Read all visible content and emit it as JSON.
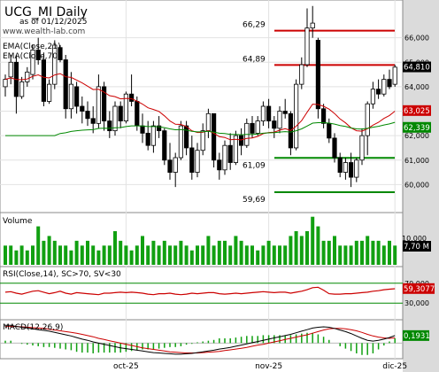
{
  "header": {
    "title": "UCG_MI Daily",
    "date_line": "as of 01/12/2025",
    "site": "www.wealth-lab.com"
  },
  "chart_data": [
    {
      "type": "candlestick",
      "panel": "price",
      "ylim": [
        59.0,
        67.4
      ],
      "y_ticks": [
        "66,000",
        "65,000",
        "64,000",
        "63,000",
        "62,000",
        "61,000",
        "60,000"
      ],
      "x_ticks": [
        "oct-25",
        "nov-25",
        "dic-25"
      ],
      "legend": [
        "EMA(Close,21)",
        "EMA(Close,70)"
      ],
      "ema21_label": "63,025",
      "ema70_label": "62,339",
      "last_label": "64,810",
      "levels": [
        {
          "label": "66,29",
          "value": 66.29,
          "color": "#cc0000"
        },
        {
          "label": "64,89",
          "value": 64.89,
          "color": "#cc0000"
        },
        {
          "label": "61,09",
          "value": 61.09,
          "color": "#008800"
        },
        {
          "label": "59,69",
          "value": 59.69,
          "color": "#008800"
        }
      ],
      "candles": [
        [
          64.0,
          64.5,
          63.6,
          64.3
        ],
        [
          64.4,
          65.3,
          64.1,
          65.0
        ],
        [
          65.0,
          65.3,
          62.9,
          63.6
        ],
        [
          63.6,
          64.4,
          63.5,
          64.2
        ],
        [
          64.2,
          64.8,
          64.0,
          64.6
        ],
        [
          64.5,
          65.7,
          64.3,
          65.5
        ],
        [
          65.5,
          66.0,
          64.9,
          65.1
        ],
        [
          65.1,
          65.4,
          63.2,
          63.4
        ],
        [
          63.4,
          64.3,
          63.3,
          64.1
        ],
        [
          64.1,
          65.9,
          63.9,
          65.7
        ],
        [
          65.6,
          65.7,
          65.0,
          65.1
        ],
        [
          65.1,
          65.3,
          62.7,
          63.1
        ],
        [
          63.1,
          64.6,
          62.7,
          64.1
        ],
        [
          64.0,
          64.2,
          62.9,
          63.2
        ],
        [
          63.2,
          63.6,
          62.5,
          63.0
        ],
        [
          63.0,
          63.4,
          62.4,
          62.7
        ],
        [
          62.7,
          63.2,
          62.1,
          62.5
        ],
        [
          62.5,
          64.5,
          62.3,
          64.0
        ],
        [
          64.0,
          64.2,
          62.2,
          62.6
        ],
        [
          62.6,
          63.0,
          61.9,
          62.2
        ],
        [
          62.2,
          63.4,
          62.0,
          63.2
        ],
        [
          63.2,
          63.4,
          62.3,
          62.6
        ],
        [
          62.6,
          63.8,
          62.5,
          63.7
        ],
        [
          63.7,
          64.5,
          63.2,
          63.4
        ],
        [
          63.4,
          63.6,
          62.2,
          62.4
        ],
        [
          62.4,
          62.9,
          61.7,
          62.1
        ],
        [
          62.1,
          62.6,
          61.4,
          61.6
        ],
        [
          61.6,
          62.6,
          61.3,
          62.4
        ],
        [
          62.4,
          62.8,
          61.9,
          62.2
        ],
        [
          62.2,
          62.3,
          60.8,
          61.0
        ],
        [
          61.0,
          61.7,
          60.2,
          60.5
        ],
        [
          60.5,
          61.3,
          59.9,
          61.1
        ],
        [
          61.1,
          62.6,
          61.0,
          62.4
        ],
        [
          62.4,
          62.6,
          61.2,
          61.5
        ],
        [
          61.5,
          62.0,
          60.2,
          60.5
        ],
        [
          60.5,
          61.7,
          60.3,
          61.4
        ],
        [
          61.4,
          62.5,
          61.2,
          62.2
        ],
        [
          62.2,
          63.1,
          61.9,
          62.9
        ],
        [
          62.9,
          62.9,
          60.7,
          61.0
        ],
        [
          61.0,
          61.3,
          60.2,
          60.6
        ],
        [
          60.6,
          61.8,
          60.4,
          61.6
        ],
        [
          61.6,
          62.1,
          60.6,
          60.9
        ],
        [
          60.9,
          62.2,
          60.8,
          62.0
        ],
        [
          62.0,
          62.3,
          61.2,
          61.6
        ],
        [
          61.6,
          62.7,
          61.5,
          62.5
        ],
        [
          62.5,
          62.8,
          61.9,
          62.1
        ],
        [
          62.1,
          62.8,
          62.0,
          62.6
        ],
        [
          62.6,
          63.4,
          62.4,
          63.2
        ],
        [
          63.2,
          63.5,
          62.3,
          62.6
        ],
        [
          62.6,
          62.8,
          61.9,
          62.3
        ],
        [
          62.3,
          63.2,
          62.1,
          63.0
        ],
        [
          63.0,
          63.5,
          62.7,
          62.9
        ],
        [
          62.9,
          63.0,
          61.2,
          61.5
        ],
        [
          61.5,
          64.3,
          61.4,
          64.1
        ],
        [
          64.1,
          65.2,
          63.9,
          64.9
        ],
        [
          64.9,
          67.2,
          64.8,
          66.4
        ],
        [
          66.4,
          67.3,
          66.0,
          66.6
        ],
        [
          65.9,
          66.0,
          62.7,
          63.1
        ],
        [
          63.1,
          63.3,
          62.3,
          62.5
        ],
        [
          62.5,
          62.7,
          61.7,
          61.9
        ],
        [
          61.9,
          62.1,
          60.9,
          61.1
        ],
        [
          61.1,
          61.3,
          60.3,
          60.5
        ],
        [
          60.5,
          61.1,
          60.2,
          60.9
        ],
        [
          60.9,
          61.3,
          59.9,
          60.3
        ],
        [
          60.3,
          61.1,
          60.1,
          61.0
        ],
        [
          61.0,
          62.3,
          60.8,
          62.0
        ],
        [
          62.0,
          63.4,
          61.2,
          63.3
        ],
        [
          63.3,
          64.2,
          63.1,
          63.9
        ],
        [
          63.9,
          64.3,
          63.5,
          63.7
        ],
        [
          63.7,
          64.5,
          63.6,
          64.3
        ],
        [
          64.3,
          64.7,
          63.9,
          64.0
        ],
        [
          64.1,
          64.9,
          64.0,
          64.8
        ]
      ]
    },
    {
      "type": "bar",
      "panel": "volume",
      "title": "Volume",
      "y_ticks": [
        "10,000"
      ],
      "last_label": "7,70 M",
      "values": [
        4,
        4,
        3,
        4,
        3,
        4,
        8,
        5,
        6,
        5,
        4,
        4,
        3,
        5,
        4,
        5,
        4,
        3,
        4,
        4,
        7,
        5,
        4,
        3,
        4,
        6,
        4,
        5,
        4,
        5,
        4,
        4,
        5,
        4,
        3,
        4,
        4,
        6,
        4,
        5,
        5,
        4,
        6,
        5,
        4,
        4,
        3,
        4,
        5,
        4,
        4,
        4,
        6,
        7,
        6,
        7,
        10,
        8,
        5,
        5,
        6,
        4,
        4,
        4,
        5,
        5,
        6,
        5,
        5,
        4,
        5,
        4
      ]
    },
    {
      "type": "line",
      "panel": "rsi",
      "title": "RSI(Close,14), SC>70, SV<30",
      "ylim": [
        0,
        100
      ],
      "y_ticks": [
        "70,000",
        "30,000"
      ],
      "levels": [
        70,
        30
      ],
      "last_label": "59,3077",
      "values": [
        52,
        53,
        50,
        48,
        51,
        54,
        55,
        52,
        49,
        51,
        54,
        50,
        48,
        51,
        50,
        49,
        48,
        47,
        50,
        50,
        51,
        52,
        51,
        52,
        51,
        50,
        48,
        47,
        49,
        49,
        50,
        48,
        47,
        48,
        50,
        49,
        50,
        51,
        51,
        49,
        48,
        49,
        50,
        49,
        50,
        51,
        52,
        53,
        52,
        51,
        52,
        52,
        50,
        52,
        54,
        57,
        61,
        62,
        56,
        49,
        48,
        48,
        49,
        49,
        50,
        51,
        52,
        54,
        55,
        57,
        58,
        59
      ]
    },
    {
      "type": "line",
      "panel": "macd",
      "title": "MACD(12,26,9)",
      "last_label": "0,1931",
      "macd": [
        0.45,
        0.45,
        0.42,
        0.4,
        0.38,
        0.36,
        0.34,
        0.32,
        0.3,
        0.27,
        0.24,
        0.21,
        0.18,
        0.14,
        0.1,
        0.07,
        0.03,
        0.0,
        -0.03,
        -0.06,
        -0.09,
        -0.12,
        -0.14,
        -0.16,
        -0.18,
        -0.2,
        -0.22,
        -0.24,
        -0.25,
        -0.26,
        -0.27,
        -0.28,
        -0.28,
        -0.27,
        -0.26,
        -0.24,
        -0.22,
        -0.2,
        -0.18,
        -0.15,
        -0.13,
        -0.11,
        -0.08,
        -0.05,
        -0.02,
        0.01,
        0.04,
        0.07,
        0.1,
        0.13,
        0.16,
        0.19,
        0.22,
        0.26,
        0.3,
        0.34,
        0.38,
        0.4,
        0.41,
        0.4,
        0.37,
        0.33,
        0.29,
        0.24,
        0.18,
        0.12,
        0.07,
        0.05,
        0.07,
        0.1,
        0.14,
        0.19
      ],
      "signal": [
        0.42,
        0.42,
        0.42,
        0.41,
        0.4,
        0.39,
        0.38,
        0.37,
        0.35,
        0.33,
        0.31,
        0.29,
        0.27,
        0.25,
        0.22,
        0.19,
        0.16,
        0.12,
        0.09,
        0.06,
        0.03,
        0.0,
        -0.03,
        -0.06,
        -0.09,
        -0.12,
        -0.14,
        -0.16,
        -0.18,
        -0.2,
        -0.22,
        -0.23,
        -0.24,
        -0.25,
        -0.25,
        -0.25,
        -0.24,
        -0.23,
        -0.22,
        -0.21,
        -0.19,
        -0.17,
        -0.15,
        -0.13,
        -0.11,
        -0.08,
        -0.05,
        -0.03,
        0.0,
        0.03,
        0.06,
        0.09,
        0.12,
        0.15,
        0.18,
        0.21,
        0.25,
        0.29,
        0.33,
        0.36,
        0.37,
        0.37,
        0.36,
        0.34,
        0.31,
        0.27,
        0.22,
        0.18,
        0.15,
        0.13,
        0.12,
        0.13
      ]
    }
  ]
}
